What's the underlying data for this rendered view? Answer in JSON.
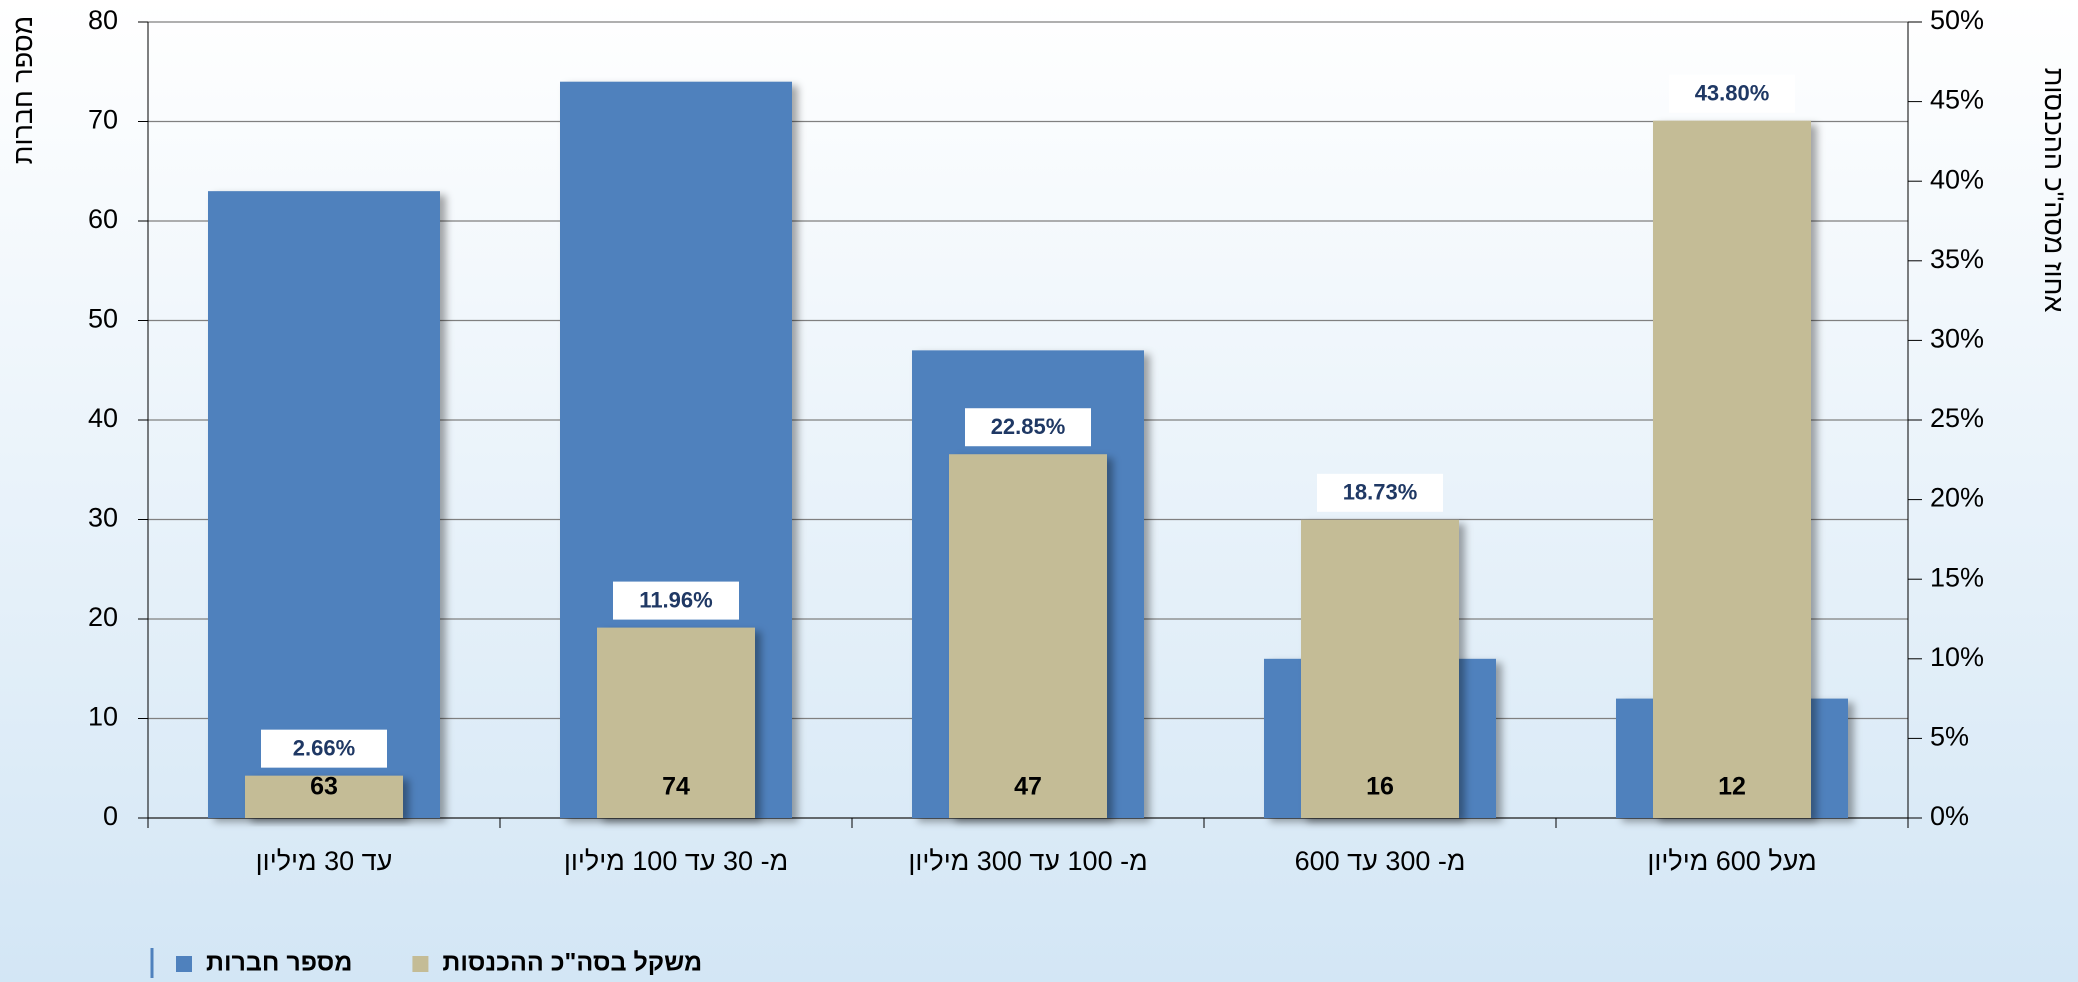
{
  "chart_data": {
    "type": "bar",
    "categories": [
      "עד 30 מיליון",
      "מ- 30 עד 100 מיליון",
      "מ- 100 עד 300 מיליון",
      "מ- 300 עד 600",
      "מעל 600 מיליון"
    ],
    "series": [
      {
        "name": "מספר חברות",
        "color": "#4f81bd",
        "values": [
          63,
          74,
          47,
          16,
          12
        ]
      },
      {
        "name": "משקל בסה\"כ ההכנסות",
        "color": "#c4bc96",
        "axis": "y2",
        "values": [
          2.66,
          11.96,
          22.85,
          18.73,
          43.8
        ],
        "value_labels": [
          "2.66%",
          "11.96%",
          "22.85%",
          "18.73%",
          "43.80%"
        ]
      }
    ],
    "ylabel": "מספר חברות",
    "y2label": "אחוז מסה\"כ ההכנסות",
    "ylim": [
      0,
      80
    ],
    "yticks": [
      0,
      10,
      20,
      30,
      40,
      50,
      60,
      70,
      80
    ],
    "y2lim": [
      0,
      50
    ],
    "y2ticks": [
      {
        "value": 0,
        "label": "0%"
      },
      {
        "value": 5,
        "label": "5%"
      },
      {
        "value": 10,
        "label": "10%"
      },
      {
        "value": 15,
        "label": "15%"
      },
      {
        "value": 20,
        "label": "20%"
      },
      {
        "value": 25,
        "label": "25%"
      },
      {
        "value": 30,
        "label": "30%"
      },
      {
        "value": 35,
        "label": "35%"
      },
      {
        "value": 40,
        "label": "40%"
      },
      {
        "value": 45,
        "label": "45%"
      },
      {
        "value": 50,
        "label": "50%"
      }
    ],
    "grid": true,
    "legend": "bottom-left"
  }
}
